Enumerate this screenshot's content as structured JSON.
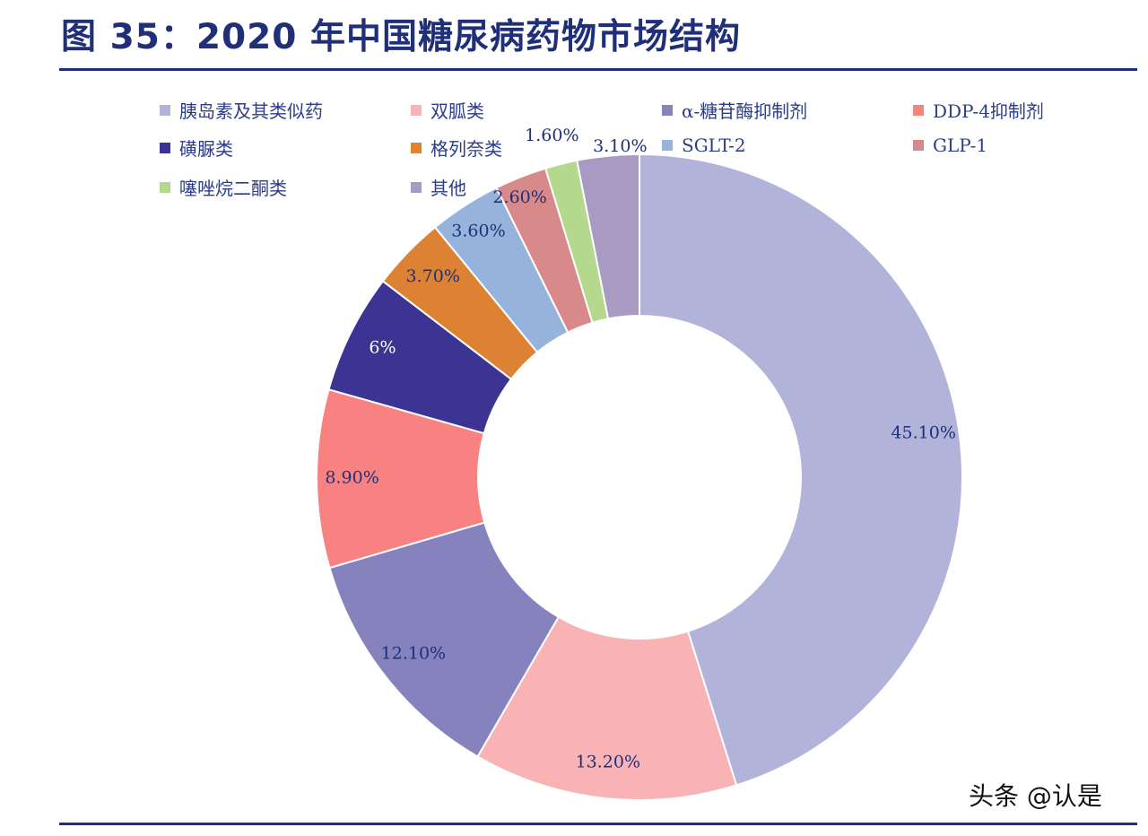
{
  "title": "图 35：2020 年中国糖尿病药物市场结构",
  "watermark": "头条 @认是",
  "chart_data": {
    "type": "pie",
    "style": "donut",
    "title": "图 35：2020 年中国糖尿病药物市场结构",
    "unit": "%",
    "legend_position": "top",
    "slices": [
      {
        "name": "胰岛素及其类似药",
        "value": 45.1,
        "label": "45.10%",
        "color": "#b1b3da"
      },
      {
        "name": "双胍类",
        "value": 13.2,
        "label": "13.20%",
        "color": "#f9b3b4"
      },
      {
        "name": "α-糖苷酶抑制剂",
        "value": 12.1,
        "label": "12.10%",
        "color": "#8582be"
      },
      {
        "name": "DDP-4抑制剂",
        "value": 8.9,
        "label": "8.90%",
        "color": "#f88282"
      },
      {
        "name": "磺脲类",
        "value": 6,
        "label": "6%",
        "color": "#3c3492"
      },
      {
        "name": "格列奈类",
        "value": 3.7,
        "label": "3.70%",
        "color": "#dd8232"
      },
      {
        "name": "SGLT-2",
        "value": 3.6,
        "label": "3.60%",
        "color": "#95b3db"
      },
      {
        "name": "GLP-1",
        "value": 2.6,
        "label": "2.60%",
        "color": "#d88a8a"
      },
      {
        "name": "噻唑烷二酮类",
        "value": 1.6,
        "label": "1.60%",
        "color": "#b4d98c"
      },
      {
        "name": "其他",
        "value": 3.1,
        "label": "3.10%",
        "color": "#a99ac4"
      }
    ]
  }
}
